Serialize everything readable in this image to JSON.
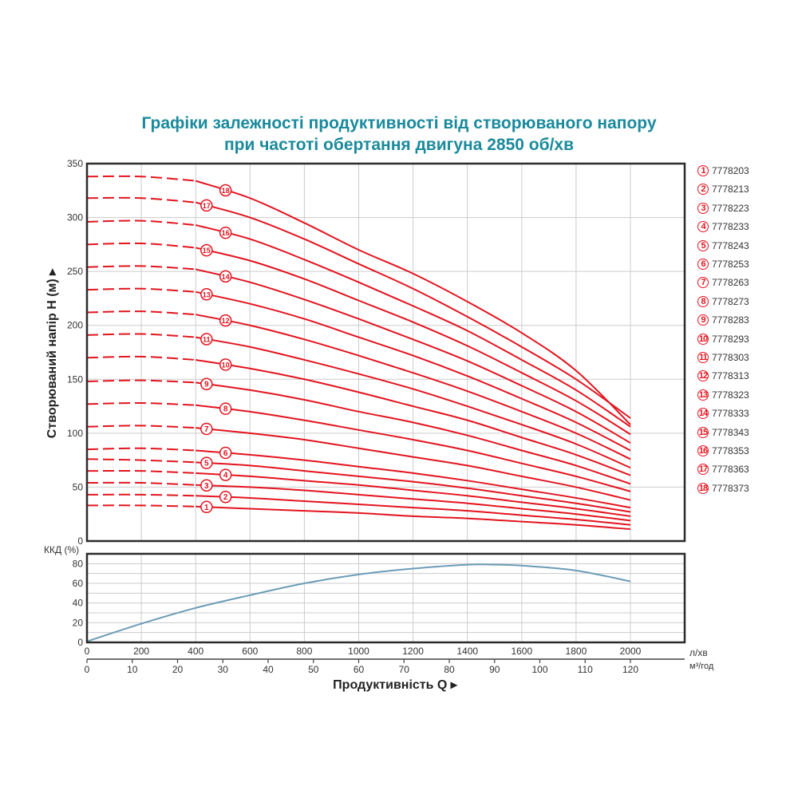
{
  "title": {
    "line1": "Графіки залежності продуктивності від створюваного напору",
    "line2": "при частоті обертання двигуна 2850 об/хв"
  },
  "colors": {
    "title": "#1a8a9c",
    "curve": "#e3141f",
    "efficiency": "#6b9cb5",
    "grid": "#cccccc",
    "frame": "#2b2b2b"
  },
  "legend": [
    {
      "num": "1",
      "code": "7778203"
    },
    {
      "num": "2",
      "code": "7778213"
    },
    {
      "num": "3",
      "code": "7778223"
    },
    {
      "num": "4",
      "code": "7778233"
    },
    {
      "num": "5",
      "code": "7778243"
    },
    {
      "num": "6",
      "code": "7778253"
    },
    {
      "num": "7",
      "code": "7778263"
    },
    {
      "num": "8",
      "code": "7778273"
    },
    {
      "num": "9",
      "code": "7778283"
    },
    {
      "num": "10",
      "code": "7778293"
    },
    {
      "num": "11",
      "code": "7778303"
    },
    {
      "num": "12",
      "code": "7778313"
    },
    {
      "num": "13",
      "code": "7778323"
    },
    {
      "num": "14",
      "code": "7778333"
    },
    {
      "num": "15",
      "code": "7778343"
    },
    {
      "num": "16",
      "code": "7778353"
    },
    {
      "num": "17",
      "code": "7778363"
    },
    {
      "num": "18",
      "code": "7778373"
    }
  ],
  "axes": {
    "y_main_label": "Створюваний напір H (м) ▸",
    "y_eff_label": "ККД (%)",
    "x_label": "Продуктивність  Q ▸",
    "x_unit_lpm": "л/хв",
    "x_unit_m3h": "м³/год",
    "y_main_ticks": [
      "0",
      "50",
      "100",
      "150",
      "200",
      "250",
      "300",
      "350"
    ],
    "y_eff_ticks": [
      "0",
      "20",
      "40",
      "60",
      "80"
    ],
    "x_lpm_ticks": [
      "0",
      "200",
      "400",
      "600",
      "800",
      "1000",
      "1200",
      "1400",
      "1600",
      "1800",
      "2000"
    ],
    "x_m3h_ticks": [
      "0",
      "10",
      "20",
      "30",
      "40",
      "50",
      "60",
      "70",
      "80",
      "90",
      "100",
      "110",
      "120"
    ]
  },
  "chart_data": [
    {
      "type": "line",
      "title": "Графіки залежності продуктивності від створюваного напору при частоті обертання двигуна 2850 об/хв",
      "xlabel": "Продуктивність Q (л/хв)",
      "ylabel": "Створюваний напір H (м)",
      "xlim": [
        0,
        2200
      ],
      "ylim": [
        0,
        350
      ],
      "grid": true,
      "legend_position": "right",
      "note": "Dashed segment from Q=0 to ~400 л/хв, solid from ~400 to 2000 л/хв",
      "x": [
        0,
        200,
        400,
        600,
        800,
        1000,
        1200,
        1400,
        1600,
        1800,
        2000
      ],
      "series": [
        {
          "name": "1 (7778203)",
          "values": [
            33,
            33,
            32,
            30,
            28,
            26,
            23,
            21,
            18,
            15,
            11
          ]
        },
        {
          "name": "2 (7778213)",
          "values": [
            43,
            43,
            42,
            40,
            37,
            34,
            31,
            28,
            24,
            20,
            15
          ]
        },
        {
          "name": "3 (7778223)",
          "values": [
            54,
            54,
            52,
            50,
            47,
            43,
            39,
            35,
            30,
            25,
            19
          ]
        },
        {
          "name": "4 (7778233)",
          "values": [
            65,
            65,
            63,
            60,
            56,
            52,
            47,
            42,
            36,
            30,
            23
          ]
        },
        {
          "name": "5 (7778243)",
          "values": [
            76,
            75,
            73,
            70,
            65,
            60,
            55,
            49,
            42,
            35,
            27
          ]
        },
        {
          "name": "6 (7778253)",
          "values": [
            85,
            86,
            84,
            80,
            75,
            69,
            63,
            56,
            48,
            40,
            31
          ]
        },
        {
          "name": "7 (7778263)",
          "values": [
            106,
            107,
            105,
            100,
            94,
            86,
            78,
            70,
            60,
            50,
            38
          ]
        },
        {
          "name": "8 (7778273)",
          "values": [
            127,
            128,
            126,
            120,
            112,
            103,
            94,
            84,
            72,
            60,
            46
          ]
        },
        {
          "name": "9 (7778283)",
          "values": [
            148,
            149,
            147,
            140,
            131,
            120,
            110,
            98,
            84,
            70,
            53
          ]
        },
        {
          "name": "10 (7778293)",
          "values": [
            170,
            171,
            168,
            160,
            150,
            138,
            125,
            112,
            96,
            80,
            61
          ]
        },
        {
          "name": "11 (7778303)",
          "values": [
            191,
            192,
            189,
            180,
            168,
            155,
            141,
            125,
            108,
            90,
            68
          ]
        },
        {
          "name": "12 (7778313)",
          "values": [
            212,
            213,
            210,
            200,
            187,
            172,
            156,
            139,
            120,
            100,
            76
          ]
        },
        {
          "name": "13 (7778323)",
          "values": [
            233,
            234,
            231,
            220,
            206,
            189,
            172,
            153,
            132,
            110,
            84
          ]
        },
        {
          "name": "14 (7778333)",
          "values": [
            254,
            255,
            252,
            240,
            224,
            206,
            187,
            167,
            144,
            120,
            91
          ]
        },
        {
          "name": "15 (7778343)",
          "values": [
            275,
            276,
            272,
            260,
            243,
            223,
            203,
            181,
            156,
            130,
            99
          ]
        },
        {
          "name": "16 (7778353)",
          "values": [
            296,
            297,
            293,
            280,
            261,
            240,
            218,
            195,
            168,
            140,
            106
          ]
        },
        {
          "name": "17 (7778363)",
          "values": [
            318,
            318,
            314,
            300,
            280,
            257,
            234,
            208,
            180,
            150,
            114
          ]
        },
        {
          "name": "18 (7778373)",
          "values": [
            338,
            338,
            334,
            318,
            295,
            270,
            248,
            222,
            193,
            158,
            108
          ]
        }
      ]
    },
    {
      "type": "line",
      "title": "ККД",
      "xlabel": "Продуктивність Q (л/хв)",
      "ylabel": "ККД (%)",
      "xlim": [
        0,
        2200
      ],
      "ylim": [
        0,
        90
      ],
      "grid": true,
      "x": [
        0,
        200,
        400,
        600,
        800,
        1000,
        1200,
        1400,
        1500,
        1600,
        1800,
        2000
      ],
      "series": [
        {
          "name": "ККД",
          "values": [
            1,
            19,
            35,
            48,
            60,
            69,
            75,
            79,
            79,
            78,
            73,
            62
          ]
        }
      ]
    }
  ]
}
